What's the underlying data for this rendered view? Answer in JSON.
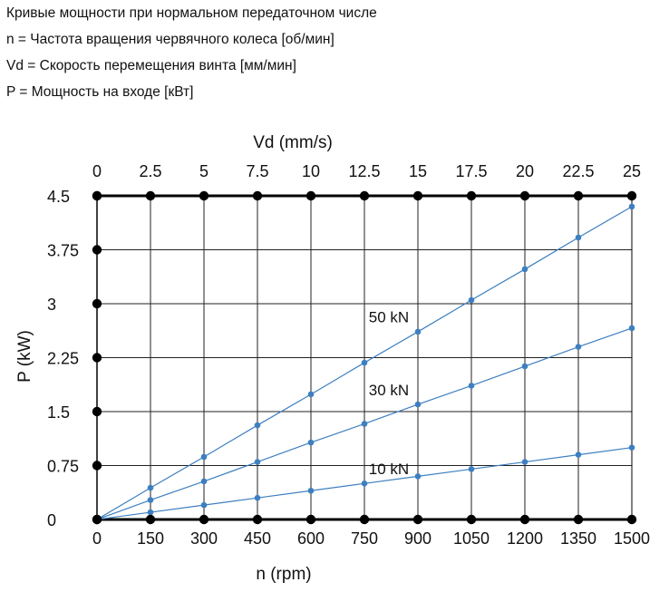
{
  "header": {
    "lines": [
      "Кривые мощности при нормальном передаточном числе",
      "n = Частота вращения червячного колеса [об/мин]",
      "Vd = Скорость перемещения винта [мм/мин]",
      "P = Мощность на входе [кВт]"
    ]
  },
  "chart_data": {
    "type": "line",
    "xlabel": "n (rpm)",
    "x2label": "Vd (mm/s)",
    "ylabel": "P (kW)",
    "x_ticks": [
      "0",
      "150",
      "300",
      "450",
      "600",
      "750",
      "900",
      "1050",
      "1200",
      "1350",
      "1500"
    ],
    "x2_ticks": [
      "0",
      "2.5",
      "5",
      "7.5",
      "10",
      "12.5",
      "15",
      "17.5",
      "20",
      "22.5",
      "25"
    ],
    "y_ticks": [
      "0",
      "0.75",
      "1.5",
      "2.25",
      "3",
      "3.75",
      "4.5"
    ],
    "xlim": [
      0,
      1500
    ],
    "ylim": [
      0,
      4.5
    ],
    "grid": true,
    "colors": {
      "series": "#3d7fc0",
      "grid": "#000000",
      "axis_dots": "#000000"
    },
    "x": [
      0,
      150,
      300,
      450,
      600,
      750,
      900,
      1050,
      1200,
      1350,
      1500
    ],
    "series": [
      {
        "name": "50 kN",
        "values": [
          0,
          0.44,
          0.87,
          1.31,
          1.74,
          2.18,
          2.61,
          3.05,
          3.48,
          3.92,
          4.35
        ]
      },
      {
        "name": "30 kN",
        "values": [
          0,
          0.27,
          0.53,
          0.8,
          1.07,
          1.33,
          1.6,
          1.86,
          2.13,
          2.4,
          2.66
        ]
      },
      {
        "name": "10 kN",
        "values": [
          0,
          0.1,
          0.2,
          0.3,
          0.4,
          0.5,
          0.6,
          0.7,
          0.8,
          0.9,
          1.0
        ]
      }
    ]
  }
}
